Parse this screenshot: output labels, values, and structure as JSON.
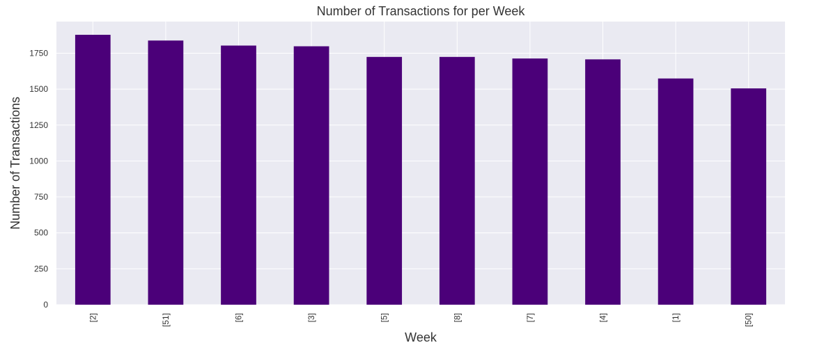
{
  "chart_data": {
    "type": "bar",
    "title": "Number of Transactions for per Week",
    "xlabel": "Week",
    "ylabel": "Number of Transactions",
    "categories": [
      "[2]",
      "[51]",
      "[6]",
      "[3]",
      "[5]",
      "[8]",
      "[7]",
      "[4]",
      "[1]",
      "[50]"
    ],
    "values": [
      1878,
      1838,
      1803,
      1798,
      1724,
      1724,
      1713,
      1707,
      1574,
      1505
    ],
    "yticks": [
      0,
      250,
      500,
      750,
      1000,
      1250,
      1500,
      1750
    ],
    "ylim": [
      0,
      1970
    ],
    "grid": true,
    "colors": {
      "bar": "#4b0079",
      "plot_background": "#eaeaf2",
      "grid": "#ffffff",
      "text": "#333333"
    }
  }
}
